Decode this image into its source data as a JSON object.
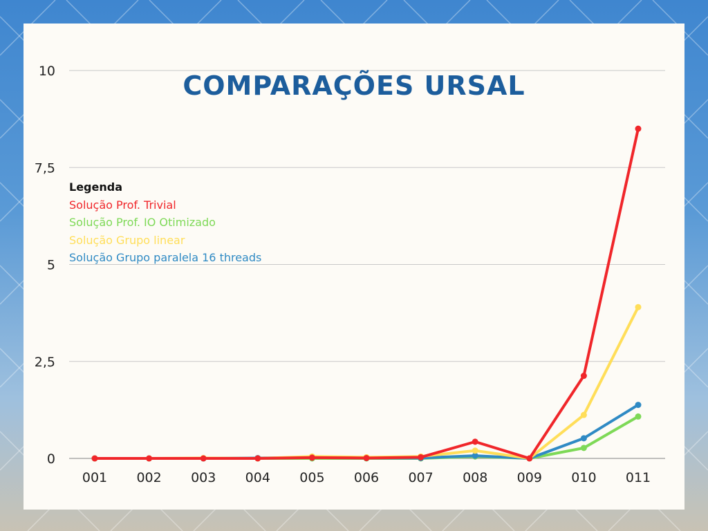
{
  "colors": {
    "trivial": "#f0262a",
    "io": "#7ed957",
    "linear": "#ffde59",
    "paralela": "#2f8ac4",
    "title": "#1c5d9c",
    "grid": "#c8c8c8",
    "text": "#222222"
  },
  "chart_data": {
    "type": "line",
    "title": "COMPARAÇÕES URSAL",
    "categories": [
      "001",
      "002",
      "003",
      "004",
      "005",
      "006",
      "007",
      "008",
      "009",
      "010",
      "011"
    ],
    "y_ticks": [
      "0",
      "2,5",
      "5",
      "7,5",
      "10"
    ],
    "ylim": [
      0,
      10
    ],
    "grid": true,
    "legend": {
      "title": "Legenda",
      "placement": "left"
    },
    "series": [
      {
        "name": "Solução Prof. Trivial",
        "color_key": "trivial",
        "values": [
          0,
          0,
          0,
          0,
          0.02,
          0.01,
          0.03,
          0.43,
          0,
          2.13,
          8.5
        ]
      },
      {
        "name": "Solução Prof. IO Otimizado",
        "color_key": "io",
        "values": [
          0,
          0,
          0,
          0,
          0,
          0,
          0,
          0.05,
          0,
          0.27,
          1.08
        ]
      },
      {
        "name": "Solução Grupo linear",
        "color_key": "linear",
        "values": [
          0,
          0,
          0.01,
          0,
          0.05,
          0.03,
          0.05,
          0.2,
          0,
          1.12,
          3.9
        ]
      },
      {
        "name": "Solução Grupo paralela 16 threads",
        "color_key": "paralela",
        "values": [
          0,
          0,
          0,
          0.01,
          0.02,
          0.01,
          0.01,
          0.07,
          0,
          0.52,
          1.38
        ]
      }
    ]
  }
}
